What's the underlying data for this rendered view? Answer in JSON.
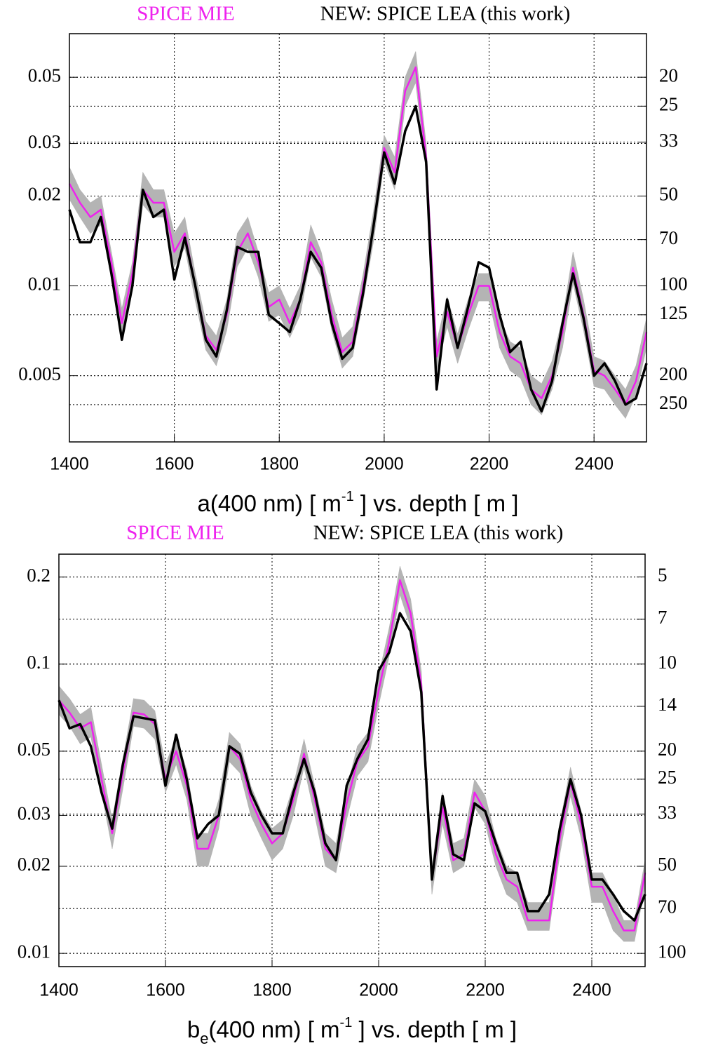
{
  "chart_data": [
    {
      "type": "line",
      "log_scale": true,
      "grid": true,
      "x": [
        1400,
        1420,
        1440,
        1460,
        1480,
        1500,
        1520,
        1540,
        1560,
        1580,
        1600,
        1620,
        1640,
        1660,
        1680,
        1700,
        1720,
        1740,
        1760,
        1780,
        1800,
        1820,
        1840,
        1860,
        1880,
        1900,
        1920,
        1940,
        1960,
        1980,
        2000,
        2020,
        2040,
        2060,
        2080,
        2100,
        2120,
        2140,
        2160,
        2180,
        2200,
        2220,
        2240,
        2260,
        2280,
        2300,
        2320,
        2340,
        2360,
        2380,
        2400,
        2420,
        2440,
        2460,
        2480,
        2500
      ],
      "series": [
        {
          "name": "SPICE MIE",
          "color": "#ee22ee",
          "values": [
            0.022,
            0.019,
            0.017,
            0.018,
            0.012,
            0.0075,
            0.011,
            0.021,
            0.019,
            0.019,
            0.013,
            0.015,
            0.01,
            0.0068,
            0.0061,
            0.008,
            0.013,
            0.015,
            0.012,
            0.0085,
            0.009,
            0.0075,
            0.009,
            0.014,
            0.012,
            0.008,
            0.006,
            0.0065,
            0.01,
            0.016,
            0.029,
            0.024,
            0.045,
            0.054,
            0.027,
            0.0058,
            0.0082,
            0.0062,
            0.008,
            0.01,
            0.01,
            0.007,
            0.0058,
            0.0055,
            0.0045,
            0.0042,
            0.005,
            0.007,
            0.0115,
            0.008,
            0.0052,
            0.005,
            0.0045,
            0.004,
            0.0048,
            0.007
          ]
        },
        {
          "name": "NEW: SPICE LEA (this work)",
          "color": "#000000",
          "values": [
            0.018,
            0.014,
            0.014,
            0.017,
            0.011,
            0.0066,
            0.01,
            0.021,
            0.017,
            0.018,
            0.0105,
            0.0145,
            0.01,
            0.0066,
            0.0058,
            0.0083,
            0.0135,
            0.013,
            0.013,
            0.008,
            0.0075,
            0.007,
            0.009,
            0.013,
            0.0115,
            0.0075,
            0.0057,
            0.0062,
            0.0095,
            0.016,
            0.028,
            0.022,
            0.033,
            0.04,
            0.026,
            0.0045,
            0.009,
            0.0062,
            0.0085,
            0.012,
            0.0115,
            0.008,
            0.006,
            0.0065,
            0.0045,
            0.0038,
            0.0048,
            0.0075,
            0.011,
            0.0078,
            0.005,
            0.0055,
            0.0048,
            0.004,
            0.0042,
            0.0055
          ]
        }
      ],
      "band": {
        "color": "#b4b4b4",
        "upper": [
          0.025,
          0.021,
          0.019,
          0.02,
          0.013,
          0.0084,
          0.012,
          0.024,
          0.021,
          0.021,
          0.015,
          0.017,
          0.011,
          0.0076,
          0.0068,
          0.009,
          0.015,
          0.017,
          0.013,
          0.0095,
          0.01,
          0.0084,
          0.01,
          0.016,
          0.013,
          0.009,
          0.0067,
          0.0073,
          0.011,
          0.018,
          0.032,
          0.027,
          0.05,
          0.061,
          0.03,
          0.0065,
          0.0092,
          0.0069,
          0.009,
          0.011,
          0.011,
          0.0078,
          0.0065,
          0.0062,
          0.005,
          0.0047,
          0.0056,
          0.0078,
          0.013,
          0.009,
          0.0058,
          0.0056,
          0.005,
          0.0045,
          0.0054,
          0.0078
        ],
        "lower": [
          0.0195,
          0.017,
          0.015,
          0.016,
          0.0107,
          0.0067,
          0.0098,
          0.0187,
          0.017,
          0.017,
          0.0116,
          0.0134,
          0.0089,
          0.0061,
          0.0054,
          0.0071,
          0.0116,
          0.0134,
          0.0107,
          0.0076,
          0.008,
          0.0067,
          0.008,
          0.0125,
          0.0107,
          0.0071,
          0.0053,
          0.0058,
          0.0089,
          0.0142,
          0.026,
          0.021,
          0.04,
          0.048,
          0.024,
          0.0052,
          0.0073,
          0.0055,
          0.0071,
          0.0089,
          0.0089,
          0.0062,
          0.0052,
          0.0049,
          0.004,
          0.0037,
          0.0045,
          0.0062,
          0.0102,
          0.0071,
          0.0046,
          0.0045,
          0.004,
          0.0036,
          0.0043,
          0.0062
        ]
      },
      "xlim": [
        1400,
        2500
      ],
      "xticks": [
        1400,
        1600,
        1800,
        2000,
        2200,
        2400
      ],
      "ylim": [
        0.003,
        0.07
      ],
      "yticks": [
        0.05,
        0.03,
        0.02,
        0.01,
        0.005
      ],
      "y2lim": [
        333.3,
        14.29
      ],
      "y2ticks": [
        20,
        25,
        33,
        50,
        70,
        100,
        125,
        200,
        250
      ],
      "xlabel": [
        "a(400 nm) [ m",
        "-1",
        " ] vs. depth [ m ]"
      ]
    },
    {
      "type": "line",
      "log_scale": true,
      "grid": true,
      "x": [
        1400,
        1420,
        1440,
        1460,
        1480,
        1500,
        1520,
        1540,
        1560,
        1580,
        1600,
        1620,
        1640,
        1660,
        1680,
        1700,
        1720,
        1740,
        1760,
        1780,
        1800,
        1820,
        1840,
        1860,
        1880,
        1900,
        1920,
        1940,
        1960,
        1980,
        2000,
        2020,
        2040,
        2060,
        2080,
        2100,
        2120,
        2140,
        2160,
        2180,
        2200,
        2220,
        2240,
        2260,
        2280,
        2300,
        2320,
        2340,
        2360,
        2380,
        2400,
        2420,
        2440,
        2460,
        2480,
        2500
      ],
      "series": [
        {
          "name": "SPICE MIE",
          "color": "#ee22ee",
          "values": [
            0.075,
            0.068,
            0.06,
            0.063,
            0.04,
            0.026,
            0.042,
            0.068,
            0.067,
            0.062,
            0.04,
            0.05,
            0.038,
            0.023,
            0.023,
            0.03,
            0.052,
            0.047,
            0.034,
            0.028,
            0.024,
            0.026,
            0.034,
            0.049,
            0.034,
            0.023,
            0.021,
            0.033,
            0.046,
            0.052,
            0.081,
            0.12,
            0.195,
            0.15,
            0.085,
            0.018,
            0.032,
            0.021,
            0.022,
            0.036,
            0.031,
            0.022,
            0.018,
            0.017,
            0.013,
            0.013,
            0.013,
            0.025,
            0.039,
            0.028,
            0.017,
            0.017,
            0.014,
            0.012,
            0.012,
            0.019
          ]
        },
        {
          "name": "NEW: SPICE LEA (this work)",
          "color": "#000000",
          "values": [
            0.075,
            0.06,
            0.062,
            0.052,
            0.036,
            0.027,
            0.045,
            0.066,
            0.065,
            0.064,
            0.038,
            0.057,
            0.04,
            0.025,
            0.028,
            0.03,
            0.052,
            0.049,
            0.036,
            0.03,
            0.026,
            0.026,
            0.036,
            0.047,
            0.036,
            0.024,
            0.021,
            0.038,
            0.047,
            0.055,
            0.095,
            0.11,
            0.15,
            0.13,
            0.08,
            0.018,
            0.035,
            0.022,
            0.021,
            0.033,
            0.031,
            0.024,
            0.019,
            0.019,
            0.014,
            0.014,
            0.016,
            0.027,
            0.04,
            0.03,
            0.018,
            0.018,
            0.016,
            0.014,
            0.013,
            0.016
          ]
        }
      ],
      "band": {
        "color": "#b4b4b4",
        "upper": [
          0.084,
          0.076,
          0.067,
          0.071,
          0.045,
          0.029,
          0.047,
          0.076,
          0.075,
          0.069,
          0.045,
          0.056,
          0.043,
          0.026,
          0.026,
          0.034,
          0.058,
          0.053,
          0.038,
          0.031,
          0.027,
          0.029,
          0.038,
          0.055,
          0.038,
          0.026,
          0.024,
          0.037,
          0.052,
          0.058,
          0.091,
          0.134,
          0.218,
          0.168,
          0.095,
          0.02,
          0.036,
          0.024,
          0.025,
          0.04,
          0.035,
          0.025,
          0.02,
          0.019,
          0.015,
          0.015,
          0.015,
          0.028,
          0.044,
          0.031,
          0.019,
          0.019,
          0.016,
          0.013,
          0.013,
          0.021
        ],
        "lower": [
          0.067,
          0.061,
          0.053,
          0.056,
          0.036,
          0.023,
          0.037,
          0.061,
          0.06,
          0.055,
          0.036,
          0.045,
          0.034,
          0.02,
          0.02,
          0.027,
          0.046,
          0.042,
          0.03,
          0.025,
          0.021,
          0.023,
          0.03,
          0.044,
          0.03,
          0.02,
          0.019,
          0.029,
          0.041,
          0.046,
          0.072,
          0.107,
          0.174,
          0.134,
          0.076,
          0.016,
          0.028,
          0.019,
          0.02,
          0.032,
          0.028,
          0.02,
          0.016,
          0.015,
          0.012,
          0.012,
          0.012,
          0.022,
          0.035,
          0.025,
          0.015,
          0.015,
          0.012,
          0.011,
          0.011,
          0.017
        ]
      },
      "xlim": [
        1400,
        2500
      ],
      "xticks": [
        1400,
        1600,
        1800,
        2000,
        2200,
        2400
      ],
      "ylim": [
        0.009,
        0.24
      ],
      "yticks": [
        0.2,
        0.1,
        0.05,
        0.03,
        0.02,
        0.01
      ],
      "y2lim": [
        111.1,
        4.17
      ],
      "y2ticks": [
        5,
        7,
        10,
        14,
        20,
        25,
        33,
        50,
        70,
        100
      ],
      "xlabel": [
        "b",
        "e",
        "(400 nm) [ m",
        "-1",
        " ] vs. depth [ m ]"
      ]
    }
  ]
}
